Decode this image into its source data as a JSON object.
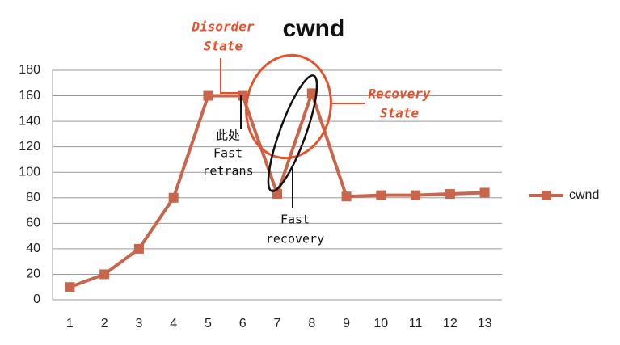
{
  "chart_data": {
    "type": "line",
    "title": "cwnd",
    "categories": [
      "1",
      "2",
      "3",
      "4",
      "5",
      "6",
      "7",
      "8",
      "9",
      "10",
      "11",
      "12",
      "13"
    ],
    "series": [
      {
        "name": "cwnd",
        "color": "#c8654a",
        "values": [
          10,
          20,
          40,
          80,
          160,
          160,
          83,
          162,
          81,
          82,
          82,
          83,
          84
        ]
      }
    ],
    "ylim": [
      0,
      180
    ],
    "yticks": [
      0,
      20,
      40,
      60,
      80,
      100,
      120,
      140,
      160,
      180
    ],
    "grid": true,
    "legend": "right",
    "annotations": [
      {
        "lines": [
          "Disorder",
          "State"
        ]
      },
      {
        "lines": [
          "Recovery",
          "State"
        ]
      },
      {
        "lines": [
          "此处",
          "Fast",
          "retrans"
        ]
      },
      {
        "lines": [
          "Fast",
          "recovery"
        ]
      }
    ]
  }
}
